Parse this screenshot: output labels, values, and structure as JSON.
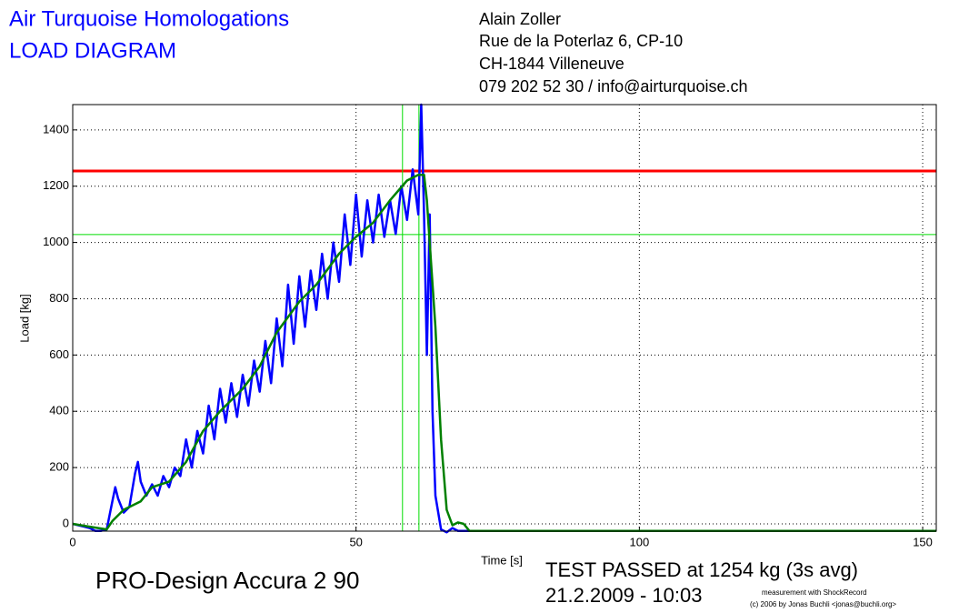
{
  "chart_data": {
    "type": "line",
    "title": "Air Turquoise Homologations",
    "subtitle": "LOAD DIAGRAM",
    "address": [
      "Alain Zoller",
      "Rue de la Poterlaz 6, CP-10",
      "CH-1844 Villeneuve",
      "079 202 52 30 / info@airturquoise.ch"
    ],
    "x_label": "Time [s]",
    "y_label": "Load [kg]",
    "product": "PRO-Design Accura 2 90",
    "result": "TEST PASSED at 1254 kg (3s avg)",
    "date": "21.2.2009 - 10:03",
    "credits": [
      "measurement with ShockRecord",
      "(c) 2006 by Jonas Buchli <jonas@buchli.org>"
    ],
    "xlim": [
      0,
      152.4
    ],
    "ylim": [
      -26,
      1490
    ],
    "xticks": [
      0,
      50,
      100,
      150
    ],
    "yticks": [
      0,
      200,
      400,
      600,
      800,
      1000,
      1200,
      1400
    ],
    "grid": true,
    "hlines": [
      {
        "value": 1254,
        "color": "#ff0000"
      },
      {
        "value": 1028,
        "color": "#00dd00"
      }
    ],
    "vlines": [
      {
        "value": 58.2,
        "color": "#00dd00"
      },
      {
        "value": 61.1,
        "color": "#00dd00"
      }
    ],
    "series": [
      {
        "color": "#0000ff",
        "x": [
          0,
          1,
          2,
          3,
          4,
          5,
          6,
          7,
          7.5,
          8,
          9,
          10,
          11,
          11.5,
          12,
          13,
          14,
          15,
          16,
          17,
          18,
          19,
          20,
          21,
          22,
          23,
          24,
          25,
          26,
          27,
          28,
          29,
          30,
          31,
          32,
          33,
          34,
          35,
          36,
          37,
          38,
          39,
          40,
          41,
          42,
          43,
          44,
          45,
          46,
          47,
          48,
          49,
          50,
          51,
          52,
          53,
          54,
          55,
          56,
          57,
          58,
          59,
          60,
          61,
          61.5,
          62,
          62.5,
          63,
          63.5,
          64,
          65,
          66,
          67,
          68,
          70,
          152.4
        ],
        "values": [
          0,
          -5,
          -10,
          -15,
          -25,
          -25,
          -20,
          80,
          130,
          90,
          40,
          60,
          180,
          220,
          150,
          100,
          140,
          100,
          170,
          130,
          200,
          170,
          300,
          200,
          330,
          250,
          420,
          300,
          480,
          360,
          500,
          380,
          530,
          420,
          580,
          470,
          650,
          500,
          730,
          560,
          850,
          640,
          880,
          700,
          900,
          760,
          960,
          800,
          1000,
          860,
          1100,
          920,
          1170,
          950,
          1150,
          1000,
          1170,
          1020,
          1150,
          1030,
          1200,
          1080,
          1260,
          1100,
          1490,
          1100,
          600,
          1100,
          400,
          100,
          -20,
          -30,
          -15,
          -25,
          -25,
          -25
        ]
      },
      {
        "color": "#008000",
        "x": [
          0,
          3,
          6,
          7,
          9,
          12,
          14,
          17,
          20,
          23,
          26,
          30,
          33,
          36,
          40,
          43,
          47,
          50,
          53,
          56,
          59,
          61,
          62,
          62.5,
          63,
          64,
          65,
          66,
          67,
          68,
          69,
          70,
          152.4
        ],
        "values": [
          0,
          -10,
          -20,
          10,
          50,
          80,
          130,
          150,
          220,
          330,
          400,
          480,
          560,
          680,
          790,
          850,
          960,
          1020,
          1070,
          1150,
          1220,
          1240,
          1240,
          1150,
          1000,
          700,
          300,
          50,
          -5,
          5,
          0,
          -25,
          -25
        ]
      }
    ]
  }
}
